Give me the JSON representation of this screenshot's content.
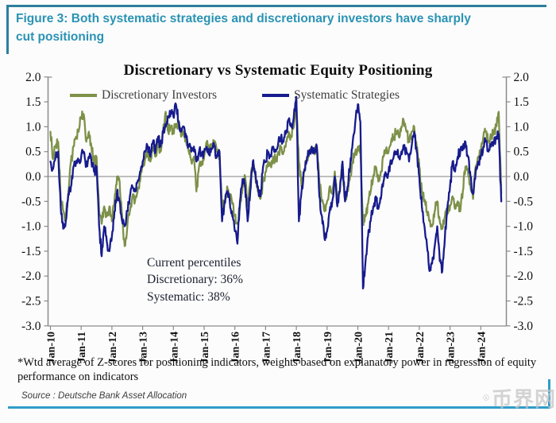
{
  "figure_header": {
    "text": "Figure 3: Both systematic strategies and discretionary investors have sharply cut positioning"
  },
  "chart": {
    "title": "Discretionary  vs Systematic Equity Positioning",
    "legend": [
      {
        "label": "Discretionary Investors",
        "color": "#7d9148"
      },
      {
        "label": "Systematic Strategies",
        "color": "#171b8d"
      }
    ],
    "annotation": {
      "line1": "Current percentiles",
      "line2": "Discretionary: 36%",
      "line3": "Systematic: 38%"
    },
    "footnote": "*Wtd average of Z-scores for positioning indicators, weights based on explanatory power in regression of equity performance on indicators",
    "source": "Source : Deutsche Bank Asset Allocation"
  },
  "watermark": {
    "symbol": "B",
    "text": "币界网"
  },
  "colors": {
    "discretionary": "#7d9148",
    "systematic": "#171b8d",
    "header_teal": "#2a93b4",
    "border_top": "#2e7f9d",
    "border_bottom": "#2f9dcb",
    "axis": "#8a8a8a",
    "zero_line": "#9a9a9a",
    "watermark": "#c6c6c6"
  },
  "chart_data": {
    "type": "line",
    "title": "Discretionary  vs Systematic Equity Positioning",
    "x_unit": "month",
    "x_start": "2010-01",
    "x_end": "2024-09",
    "x_tick_labels": [
      "Jan-10",
      "Jan-11",
      "Jan-12",
      "Jan-13",
      "Jan-14",
      "Jan-15",
      "Jan-16",
      "Jan-17",
      "Jan-18",
      "Jan-19",
      "Jan-20",
      "Jan-21",
      "Jan-22",
      "Jan-23",
      "Jan-24"
    ],
    "y_tick_labels": [
      "2.0",
      "1.5",
      "1.0",
      "0.5",
      "0.0",
      "-0.5",
      "-1.0",
      "-1.5",
      "-2.0",
      "-2.5",
      "-3.0"
    ],
    "ylim": [
      -3.0,
      2.0
    ],
    "y_axis_sides": "both",
    "grid": "zero-line-only",
    "legend_position": "top-inside",
    "series": [
      {
        "name": "Discretionary Investors",
        "color": "#7d9148",
        "values": [
          0.9,
          0.35,
          0.6,
          0.7,
          -0.45,
          -0.7,
          -0.85,
          -0.3,
          0.3,
          0.6,
          0.8,
          0.9,
          1.2,
          1.25,
          0.7,
          0.9,
          0.6,
          0.3,
          0.4,
          -0.7,
          -0.95,
          -0.6,
          -0.8,
          -0.6,
          -0.9,
          -0.5,
          0.0,
          -0.1,
          -0.8,
          -1.4,
          -1.0,
          -0.7,
          -0.4,
          -0.5,
          -0.3,
          -0.1,
          0.2,
          0.4,
          0.5,
          0.3,
          0.6,
          0.4,
          0.7,
          0.5,
          0.9,
          1.3,
          0.9,
          1.0,
          0.9,
          1.0,
          1.1,
          0.8,
          0.9,
          0.7,
          0.5,
          0.3,
          0.4,
          -0.3,
          0.2,
          0.3,
          0.4,
          0.7,
          0.5,
          0.6,
          0.7,
          0.5,
          0.4,
          -0.6,
          -0.5,
          -0.2,
          -0.4,
          -0.55,
          -0.8,
          -0.95,
          -0.6,
          -0.2,
          0.0,
          -0.6,
          -0.1,
          0.2,
          0.0,
          -0.3,
          -0.45,
          -0.1,
          0.1,
          0.3,
          0.2,
          0.4,
          0.3,
          0.5,
          0.6,
          0.5,
          0.7,
          0.9,
          0.8,
          1.0,
          1.5,
          0.3,
          -0.2,
          0.1,
          0.3,
          0.5,
          0.6,
          0.5,
          0.6,
          -0.1,
          -0.5,
          -0.7,
          -0.5,
          -0.2,
          -0.35,
          0.1,
          -0.5,
          -0.25,
          0.2,
          -0.45,
          -0.3,
          0.0,
          0.3,
          0.5,
          0.6,
          0.5,
          -0.95,
          -0.8,
          -0.55,
          -0.3,
          0.0,
          0.2,
          -0.1,
          0.1,
          0.4,
          0.55,
          0.5,
          0.7,
          0.8,
          0.9,
          0.8,
          1.0,
          1.1,
          0.9,
          0.7,
          0.9,
          1.0,
          0.6,
          0.2,
          -0.3,
          -0.5,
          -0.7,
          -0.9,
          -1.0,
          -0.7,
          -0.5,
          -0.9,
          -1.05,
          -0.8,
          -0.7,
          -0.6,
          -0.4,
          -0.65,
          -0.5,
          -0.7,
          -0.3,
          0.2,
          0.1,
          -0.2,
          -0.45,
          0.2,
          0.4,
          0.5,
          0.8,
          0.9,
          0.7,
          0.8,
          0.9,
          1.0,
          1.3,
          -0.35
        ],
        "current_percentile": "36%"
      },
      {
        "name": "Systematic Strategies",
        "color": "#171b8d",
        "values": [
          0.3,
          0.15,
          0.4,
          0.5,
          -0.6,
          -1.05,
          -0.9,
          -0.35,
          -0.2,
          0.2,
          0.3,
          0.3,
          0.4,
          0.5,
          0.2,
          0.4,
          0.3,
          0.1,
          0.2,
          -1.0,
          -1.6,
          -1.0,
          -1.3,
          -1.5,
          -1.2,
          -0.7,
          -0.3,
          -0.5,
          -0.9,
          -1.0,
          -0.7,
          -0.4,
          -0.2,
          -0.3,
          -0.1,
          0.1,
          0.3,
          0.5,
          0.6,
          0.4,
          0.7,
          0.5,
          0.8,
          0.6,
          0.9,
          1.0,
          1.2,
          1.3,
          1.2,
          1.45,
          1.1,
          0.9,
          1.0,
          0.8,
          0.6,
          0.5,
          0.6,
          0.3,
          0.5,
          0.45,
          0.5,
          0.6,
          0.45,
          0.55,
          0.6,
          0.4,
          0.5,
          -0.9,
          -0.5,
          -0.3,
          -0.5,
          -0.8,
          -1.1,
          -1.35,
          -0.5,
          -0.05,
          -0.2,
          -0.9,
          -0.3,
          0.3,
          0.1,
          -0.2,
          -0.4,
          0.2,
          0.3,
          0.5,
          0.4,
          0.6,
          0.5,
          0.7,
          0.8,
          0.7,
          0.9,
          1.15,
          1.0,
          1.2,
          1.6,
          -0.9,
          -0.3,
          0.1,
          0.3,
          0.5,
          0.6,
          0.5,
          0.6,
          -0.4,
          -0.8,
          -1.25,
          -1.1,
          -0.7,
          -0.5,
          0.0,
          -0.6,
          -0.3,
          0.3,
          -0.5,
          -0.2,
          0.2,
          0.7,
          1.1,
          1.45,
          1.1,
          -2.25,
          -1.7,
          -1.2,
          -0.9,
          -0.6,
          -0.4,
          -0.65,
          -0.45,
          -0.1,
          0.05,
          0.1,
          0.3,
          0.4,
          0.5,
          0.4,
          0.5,
          0.6,
          0.5,
          0.3,
          0.6,
          0.9,
          0.5,
          0.0,
          -0.6,
          -1.0,
          -1.4,
          -1.9,
          -1.75,
          -1.4,
          -1.0,
          -1.7,
          -1.9,
          -1.2,
          -0.6,
          -0.2,
          0.3,
          0.1,
          0.4,
          0.5,
          0.55,
          0.7,
          0.4,
          0.0,
          -0.35,
          0.1,
          0.3,
          0.4,
          0.6,
          0.7,
          0.5,
          0.6,
          0.7,
          0.8,
          0.85,
          -0.5
        ],
        "current_percentile": "38%"
      }
    ],
    "layout": {
      "noise_amplitude": 0.12,
      "noise_subpoints": 5
    }
  }
}
